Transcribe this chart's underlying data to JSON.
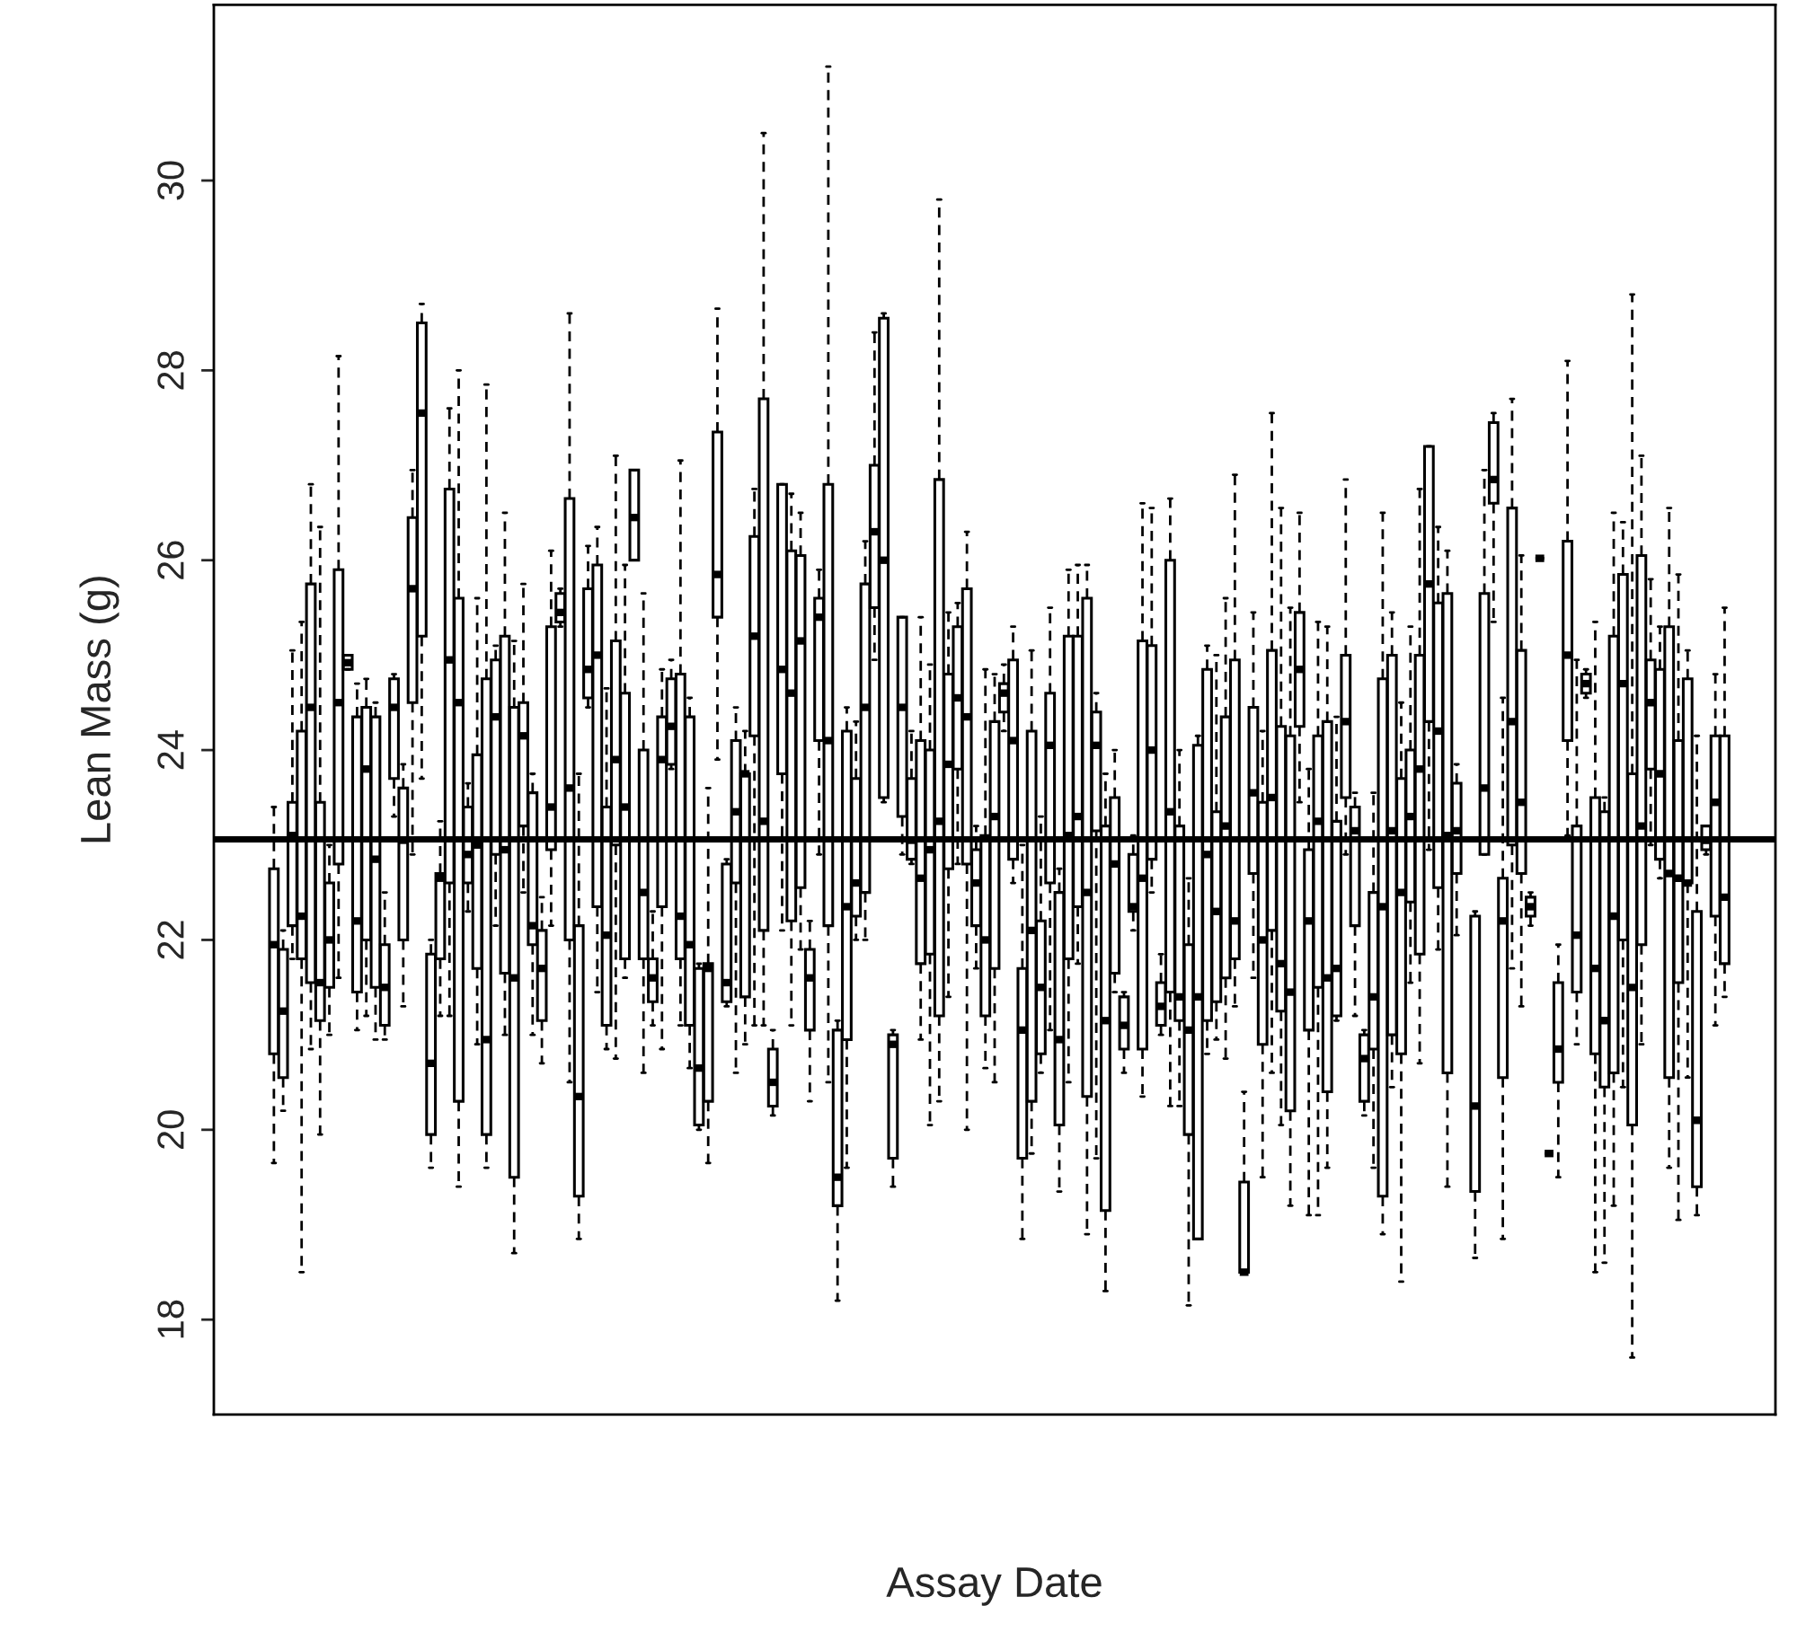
{
  "chart_data": {
    "type": "box",
    "xlabel": "Assay Date",
    "ylabel": "Lean Mass (g)",
    "ylim": [
      17.0,
      31.85
    ],
    "yticks": [
      18,
      20,
      22,
      24,
      26,
      28,
      30
    ],
    "grid": false,
    "tick_labels": "y",
    "ref_lines": [
      {
        "axis": "y",
        "value": 23.06
      }
    ],
    "categories": [
      null,
      null,
      null,
      null,
      null,
      null,
      null,
      null,
      null,
      null,
      null,
      null,
      null,
      null,
      null,
      null,
      null,
      null,
      null,
      null,
      null,
      null,
      null,
      null,
      null,
      null,
      null,
      null,
      null,
      null,
      null,
      null,
      null,
      null,
      null,
      null,
      null,
      null,
      null,
      null,
      null,
      null,
      null,
      null,
      null,
      null,
      null,
      null,
      null,
      null,
      null,
      null,
      null,
      null,
      null,
      null,
      null,
      null,
      null,
      null,
      null,
      null,
      null,
      null,
      null,
      null,
      null,
      null,
      null,
      null,
      null,
      null,
      null,
      null,
      null,
      null,
      null,
      null,
      null,
      null,
      null,
      null,
      null,
      null,
      null,
      null,
      null,
      null,
      null,
      null,
      null,
      null,
      null,
      null,
      null,
      null,
      null,
      null,
      null,
      null,
      null,
      null,
      null,
      null,
      null,
      null,
      null,
      null,
      null,
      null,
      null,
      null,
      null,
      null,
      null,
      null,
      null,
      null,
      null,
      null,
      null,
      null,
      null,
      null,
      null,
      null,
      null,
      null,
      null,
      null,
      null,
      null,
      null,
      null,
      null,
      null,
      null,
      null,
      null,
      null,
      null,
      null,
      null,
      null,
      null,
      null,
      null,
      null,
      null,
      null,
      null,
      null,
      null,
      null,
      null,
      null,
      null,
      null,
      null,
      null,
      null,
      null,
      null,
      null,
      null,
      null,
      null,
      null,
      null
    ],
    "boxes": [
      null,
      null,
      null,
      null,
      null,
      null,
      {
        "low": 19.65,
        "q1": 20.8,
        "median": 21.95,
        "q3": 22.75,
        "high": 23.4
      },
      {
        "low": 20.2,
        "q1": 20.55,
        "median": 21.25,
        "q3": 21.9,
        "high": 22.1
      },
      {
        "low": 21.8,
        "q1": 22.15,
        "median": 23.1,
        "q3": 23.45,
        "high": 25.05
      },
      {
        "low": 18.5,
        "q1": 21.8,
        "median": 22.25,
        "q3": 24.2,
        "high": 25.35
      },
      {
        "low": 20.85,
        "q1": 21.55,
        "median": 24.45,
        "q3": 25.75,
        "high": 26.8
      },
      {
        "low": 19.95,
        "q1": 21.15,
        "median": 21.55,
        "q3": 23.45,
        "high": 26.35
      },
      {
        "low": 21.0,
        "q1": 21.5,
        "median": 22.0,
        "q3": 22.6,
        "high": 23.0
      },
      {
        "low": 21.6,
        "q1": 22.8,
        "median": 24.5,
        "q3": 25.9,
        "high": 28.15
      },
      {
        "low": 24.85,
        "q1": 24.85,
        "median": 24.92,
        "q3": 25.0,
        "high": 25.0
      },
      {
        "low": 21.05,
        "q1": 21.45,
        "median": 22.2,
        "q3": 24.35,
        "high": 24.7
      },
      {
        "low": 21.2,
        "q1": 22.0,
        "median": 23.8,
        "q3": 24.45,
        "high": 24.75
      },
      {
        "low": 20.95,
        "q1": 21.5,
        "median": 22.85,
        "q3": 24.35,
        "high": 24.5
      },
      {
        "low": 20.95,
        "q1": 21.1,
        "median": 21.5,
        "q3": 21.95,
        "high": 22.5
      },
      {
        "low": 23.3,
        "q1": 23.7,
        "median": 24.45,
        "q3": 24.75,
        "high": 24.8
      },
      {
        "low": 21.3,
        "q1": 22.0,
        "median": 23.05,
        "q3": 23.6,
        "high": 23.85
      },
      {
        "low": 22.9,
        "q1": 24.5,
        "median": 25.7,
        "q3": 26.45,
        "high": 26.95
      },
      {
        "low": 23.7,
        "q1": 25.2,
        "median": 27.55,
        "q3": 28.5,
        "high": 28.7
      },
      {
        "low": 19.6,
        "q1": 19.95,
        "median": 20.7,
        "q3": 21.85,
        "high": 22.0
      },
      {
        "low": 21.2,
        "q1": 21.8,
        "median": 22.65,
        "q3": 22.7,
        "high": 23.25
      },
      {
        "low": 21.2,
        "q1": 22.6,
        "median": 24.95,
        "q3": 26.75,
        "high": 27.6
      },
      {
        "low": 19.4,
        "q1": 20.3,
        "median": 24.5,
        "q3": 25.6,
        "high": 28.0
      },
      {
        "low": 22.3,
        "q1": 22.6,
        "median": 22.9,
        "q3": 23.4,
        "high": 23.65
      },
      {
        "low": 20.9,
        "q1": 21.7,
        "median": 23.0,
        "q3": 23.95,
        "high": 25.6
      },
      {
        "low": 19.6,
        "q1": 19.95,
        "median": 20.95,
        "q3": 24.75,
        "high": 27.85
      },
      {
        "low": 22.15,
        "q1": 22.9,
        "median": 24.35,
        "q3": 24.95,
        "high": 25.1
      },
      {
        "low": 21.0,
        "q1": 21.65,
        "median": 22.95,
        "q3": 25.2,
        "high": 26.5
      },
      {
        "low": 18.7,
        "q1": 19.5,
        "median": 21.6,
        "q3": 24.45,
        "high": 25.15
      },
      {
        "low": 22.5,
        "q1": 23.2,
        "median": 24.15,
        "q3": 24.5,
        "high": 25.75
      },
      {
        "low": 21.0,
        "q1": 21.95,
        "median": 22.15,
        "q3": 23.55,
        "high": 23.75
      },
      {
        "low": 20.7,
        "q1": 21.15,
        "median": 21.7,
        "q3": 22.1,
        "high": 22.45
      },
      {
        "low": 22.15,
        "q1": 22.95,
        "median": 23.4,
        "q3": 25.3,
        "high": 26.1
      },
      {
        "low": 25.3,
        "q1": 25.35,
        "median": 25.45,
        "q3": 25.65,
        "high": 25.7
      },
      {
        "low": 20.5,
        "q1": 22.0,
        "median": 23.6,
        "q3": 26.65,
        "high": 28.6
      },
      {
        "low": 18.85,
        "q1": 19.3,
        "median": 20.35,
        "q3": 22.15,
        "high": 23.75
      },
      {
        "low": 24.45,
        "q1": 24.55,
        "median": 24.85,
        "q3": 25.7,
        "high": 26.15
      },
      {
        "low": 21.45,
        "q1": 22.35,
        "median": 25.0,
        "q3": 25.95,
        "high": 26.35
      },
      {
        "low": 20.85,
        "q1": 21.1,
        "median": 22.05,
        "q3": 23.4,
        "high": 24.65
      },
      {
        "low": 20.75,
        "q1": 23.0,
        "median": 23.9,
        "q3": 25.15,
        "high": 27.1
      },
      {
        "low": 21.6,
        "q1": 21.8,
        "median": 23.4,
        "q3": 24.6,
        "high": 25.95
      },
      {
        "low": 26.0,
        "q1": 26.0,
        "median": 26.45,
        "q3": 26.95,
        "high": 26.95
      },
      {
        "low": 20.6,
        "q1": 21.8,
        "median": 22.5,
        "q3": 24.0,
        "high": 25.65
      },
      {
        "low": 21.1,
        "q1": 21.35,
        "median": 21.6,
        "q3": 21.8,
        "high": 22.3
      },
      {
        "low": 20.85,
        "q1": 22.35,
        "median": 23.9,
        "q3": 24.35,
        "high": 24.85
      },
      {
        "low": 23.8,
        "q1": 23.85,
        "median": 24.25,
        "q3": 24.75,
        "high": 24.95
      },
      {
        "low": 21.1,
        "q1": 21.8,
        "median": 22.25,
        "q3": 24.8,
        "high": 27.05
      },
      {
        "low": 20.65,
        "q1": 21.1,
        "median": 21.95,
        "q3": 24.35,
        "high": 24.55
      },
      {
        "low": 20.0,
        "q1": 20.05,
        "median": 20.65,
        "q3": 21.7,
        "high": 21.75
      },
      {
        "low": 19.65,
        "q1": 20.3,
        "median": 21.7,
        "q3": 21.75,
        "high": 23.6
      },
      {
        "low": 23.9,
        "q1": 25.4,
        "median": 25.85,
        "q3": 27.35,
        "high": 28.65
      },
      {
        "low": 21.3,
        "q1": 21.35,
        "median": 21.55,
        "q3": 22.8,
        "high": 22.85
      },
      {
        "low": 20.6,
        "q1": 22.6,
        "median": 23.35,
        "q3": 24.1,
        "high": 24.45
      },
      {
        "low": 20.9,
        "q1": 21.4,
        "median": 23.75,
        "q3": 23.75,
        "high": 24.2
      },
      {
        "low": 21.1,
        "q1": 24.15,
        "median": 25.2,
        "q3": 26.25,
        "high": 26.75
      },
      {
        "low": 21.1,
        "q1": 22.1,
        "median": 23.25,
        "q3": 27.7,
        "high": 30.5
      },
      {
        "low": 20.15,
        "q1": 20.25,
        "median": 20.5,
        "q3": 20.85,
        "high": 21.05
      },
      {
        "low": 22.1,
        "q1": 23.75,
        "median": 24.85,
        "q3": 26.8,
        "high": 26.8
      },
      {
        "low": 21.1,
        "q1": 22.2,
        "median": 24.6,
        "q3": 26.1,
        "high": 26.7
      },
      {
        "low": 21.9,
        "q1": 22.55,
        "median": 25.15,
        "q3": 26.05,
        "high": 26.5
      },
      {
        "low": 20.3,
        "q1": 21.05,
        "median": 21.6,
        "q3": 21.9,
        "high": 22.2
      },
      {
        "low": 22.9,
        "q1": 24.1,
        "median": 25.4,
        "q3": 25.6,
        "high": 25.9
      },
      {
        "low": 20.5,
        "q1": 22.15,
        "median": 24.1,
        "q3": 26.8,
        "high": 31.2
      },
      {
        "low": 18.2,
        "q1": 19.2,
        "median": 19.5,
        "q3": 21.05,
        "high": 21.15
      },
      {
        "low": 19.6,
        "q1": 20.95,
        "median": 22.35,
        "q3": 24.2,
        "high": 24.45
      },
      {
        "low": 22.0,
        "q1": 22.25,
        "median": 22.6,
        "q3": 23.7,
        "high": 24.3
      },
      {
        "low": 22.0,
        "q1": 22.5,
        "median": 24.45,
        "q3": 25.75,
        "high": 26.2
      },
      {
        "low": 24.95,
        "q1": 25.5,
        "median": 26.3,
        "q3": 27.0,
        "high": 28.4
      },
      {
        "low": 23.45,
        "q1": 23.5,
        "median": 26.0,
        "q3": 28.55,
        "high": 28.6
      },
      {
        "low": 19.4,
        "q1": 19.7,
        "median": 20.9,
        "q3": 21.0,
        "high": 21.05
      },
      {
        "low": 22.9,
        "q1": 23.3,
        "median": 24.45,
        "q3": 25.4,
        "high": 25.4
      },
      {
        "low": 22.8,
        "q1": 22.85,
        "median": 23.05,
        "q3": 23.7,
        "high": 24.2
      },
      {
        "low": 20.95,
        "q1": 21.75,
        "median": 22.65,
        "q3": 24.1,
        "high": 25.4
      },
      {
        "low": 20.05,
        "q1": 21.85,
        "median": 22.95,
        "q3": 24.0,
        "high": 24.9
      },
      {
        "low": 20.3,
        "q1": 21.2,
        "median": 23.25,
        "q3": 26.85,
        "high": 29.8
      },
      {
        "low": 21.4,
        "q1": 22.75,
        "median": 23.85,
        "q3": 24.8,
        "high": 25.45
      },
      {
        "low": 22.8,
        "q1": 23.8,
        "median": 24.55,
        "q3": 25.3,
        "high": 25.55
      },
      {
        "low": 20.0,
        "q1": 22.8,
        "median": 24.35,
        "q3": 25.7,
        "high": 26.3
      },
      {
        "low": 21.7,
        "q1": 22.15,
        "median": 22.6,
        "q3": 22.95,
        "high": 23.2
      },
      {
        "low": 20.65,
        "q1": 21.2,
        "median": 22.0,
        "q3": 23.1,
        "high": 24.85
      },
      {
        "low": 20.5,
        "q1": 21.7,
        "median": 23.3,
        "q3": 24.3,
        "high": 24.8
      },
      {
        "low": 24.2,
        "q1": 24.4,
        "median": 24.6,
        "q3": 24.7,
        "high": 24.9
      },
      {
        "low": 22.6,
        "q1": 22.85,
        "median": 24.1,
        "q3": 24.95,
        "high": 25.3
      },
      {
        "low": 18.85,
        "q1": 19.7,
        "median": 21.05,
        "q3": 21.7,
        "high": 23.0
      },
      {
        "low": 19.75,
        "q1": 20.3,
        "median": 22.1,
        "q3": 24.2,
        "high": 25.05
      },
      {
        "low": 20.6,
        "q1": 20.8,
        "median": 21.5,
        "q3": 22.2,
        "high": 23.3
      },
      {
        "low": 21.05,
        "q1": 22.6,
        "median": 24.05,
        "q3": 24.6,
        "high": 25.5
      },
      {
        "low": 19.35,
        "q1": 20.05,
        "median": 20.95,
        "q3": 22.5,
        "high": 22.75
      },
      {
        "low": 20.5,
        "q1": 21.8,
        "median": 23.1,
        "q3": 25.2,
        "high": 25.9
      },
      {
        "low": 21.75,
        "q1": 22.35,
        "median": 23.3,
        "q3": 25.2,
        "high": 25.95
      },
      {
        "low": 18.9,
        "q1": 20.35,
        "median": 22.5,
        "q3": 25.6,
        "high": 25.95
      },
      {
        "low": 19.7,
        "q1": 23.15,
        "median": 24.05,
        "q3": 24.4,
        "high": 24.6
      },
      {
        "low": 18.3,
        "q1": 19.15,
        "median": 21.15,
        "q3": 23.2,
        "high": 23.75
      },
      {
        "low": 21.45,
        "q1": 21.65,
        "median": 22.8,
        "q3": 23.5,
        "high": 24.0
      },
      {
        "low": 20.6,
        "q1": 20.85,
        "median": 21.1,
        "q3": 21.4,
        "high": 21.45
      },
      {
        "low": 22.1,
        "q1": 22.3,
        "median": 22.35,
        "q3": 22.9,
        "high": 23.1
      },
      {
        "low": 20.35,
        "q1": 20.85,
        "median": 22.65,
        "q3": 25.15,
        "high": 26.6
      },
      {
        "low": 22.5,
        "q1": 22.85,
        "median": 24.0,
        "q3": 25.1,
        "high": 26.55
      },
      {
        "low": 21.0,
        "q1": 21.1,
        "median": 21.3,
        "q3": 21.55,
        "high": 21.85
      },
      {
        "low": 20.25,
        "q1": 21.45,
        "median": 23.35,
        "q3": 26.0,
        "high": 26.65
      },
      {
        "low": 20.25,
        "q1": 21.15,
        "median": 21.4,
        "q3": 23.2,
        "high": 24.0
      },
      {
        "low": 18.15,
        "q1": 19.95,
        "median": 21.05,
        "q3": 21.95,
        "high": 22.65
      },
      {
        "low": 18.85,
        "q1": 18.85,
        "median": 21.4,
        "q3": 24.05,
        "high": 24.15
      },
      {
        "low": 20.8,
        "q1": 21.15,
        "median": 22.9,
        "q3": 24.85,
        "high": 25.1
      },
      {
        "low": 20.95,
        "q1": 21.35,
        "median": 22.3,
        "q3": 23.35,
        "high": 25.0
      },
      {
        "low": 20.75,
        "q1": 21.6,
        "median": 23.2,
        "q3": 24.35,
        "high": 25.6
      },
      {
        "low": 21.3,
        "q1": 21.8,
        "median": 22.2,
        "q3": 24.95,
        "high": 26.9
      },
      {
        "low": 18.5,
        "q1": 18.5,
        "median": 18.5,
        "q3": 19.45,
        "high": 20.4
      },
      {
        "low": 21.6,
        "q1": 22.7,
        "median": 23.55,
        "q3": 24.45,
        "high": 25.45
      },
      {
        "low": 19.5,
        "q1": 20.9,
        "median": 22.0,
        "q3": 23.45,
        "high": 24.2
      },
      {
        "low": 20.6,
        "q1": 22.1,
        "median": 23.5,
        "q3": 25.05,
        "high": 27.55
      },
      {
        "low": 20.05,
        "q1": 21.25,
        "median": 21.75,
        "q3": 24.25,
        "high": 26.55
      },
      {
        "low": 19.2,
        "q1": 20.2,
        "median": 21.45,
        "q3": 24.15,
        "high": 25.5
      },
      {
        "low": 23.45,
        "q1": 24.25,
        "median": 24.85,
        "q3": 25.45,
        "high": 26.5
      },
      {
        "low": 19.1,
        "q1": 21.05,
        "median": 22.2,
        "q3": 22.95,
        "high": 23.8
      },
      {
        "low": 19.1,
        "q1": 21.5,
        "median": 23.25,
        "q3": 24.15,
        "high": 25.35
      },
      {
        "low": 19.6,
        "q1": 20.4,
        "median": 21.6,
        "q3": 24.3,
        "high": 25.3
      },
      {
        "low": 21.15,
        "q1": 21.2,
        "median": 21.7,
        "q3": 23.25,
        "high": 24.35
      },
      {
        "low": 22.9,
        "q1": 23.5,
        "median": 24.3,
        "q3": 25.0,
        "high": 26.85
      },
      {
        "low": 21.2,
        "q1": 22.15,
        "median": 23.15,
        "q3": 23.4,
        "high": 23.55
      },
      {
        "low": 20.15,
        "q1": 20.3,
        "median": 20.75,
        "q3": 21.0,
        "high": 21.05
      },
      {
        "low": 19.6,
        "q1": 20.85,
        "median": 21.4,
        "q3": 22.5,
        "high": 23.55
      },
      {
        "low": 18.9,
        "q1": 19.3,
        "median": 22.35,
        "q3": 24.75,
        "high": 26.5
      },
      {
        "low": 20.45,
        "q1": 21.0,
        "median": 23.15,
        "q3": 25.0,
        "high": 25.45
      },
      {
        "low": 18.4,
        "q1": 20.8,
        "median": 22.5,
        "q3": 23.7,
        "high": 24.5
      },
      {
        "low": 21.55,
        "q1": 22.4,
        "median": 23.3,
        "q3": 24.0,
        "high": 25.3
      },
      {
        "low": 20.7,
        "q1": 21.85,
        "median": 23.8,
        "q3": 25.0,
        "high": 26.75
      },
      {
        "low": 22.95,
        "q1": 24.3,
        "median": 25.75,
        "q3": 27.2,
        "high": 27.2
      },
      {
        "low": 21.9,
        "q1": 22.55,
        "median": 24.2,
        "q3": 25.55,
        "high": 26.35
      },
      {
        "low": 19.4,
        "q1": 20.6,
        "median": 23.1,
        "q3": 25.65,
        "high": 26.1
      },
      {
        "low": 22.05,
        "q1": 22.7,
        "median": 23.15,
        "q3": 23.65,
        "high": 23.85
      },
      null,
      {
        "low": 18.65,
        "q1": 19.35,
        "median": 20.25,
        "q3": 22.25,
        "high": 22.3
      },
      {
        "low": 22.9,
        "q1": 22.9,
        "median": 23.6,
        "q3": 25.65,
        "high": 26.95
      },
      {
        "low": 25.35,
        "q1": 26.6,
        "median": 26.85,
        "q3": 27.45,
        "high": 27.55
      },
      {
        "low": 18.85,
        "q1": 20.55,
        "median": 22.2,
        "q3": 22.65,
        "high": 24.55
      },
      {
        "low": 21.7,
        "q1": 23.0,
        "median": 24.3,
        "q3": 26.55,
        "high": 27.7
      },
      {
        "low": 21.3,
        "q1": 22.7,
        "median": 23.45,
        "q3": 25.05,
        "high": 26.05
      },
      {
        "low": 22.15,
        "q1": 22.25,
        "median": 22.35,
        "q3": 22.45,
        "high": 22.5
      },
      {
        "low": 26.02,
        "q1": 26.02,
        "median": 26.02,
        "q3": 26.02,
        "high": 26.02
      },
      {
        "low": 19.75,
        "q1": 19.75,
        "median": 19.75,
        "q3": 19.75,
        "high": 19.75
      },
      {
        "low": 19.5,
        "q1": 20.5,
        "median": 20.85,
        "q3": 21.55,
        "high": 21.95
      },
      {
        "low": 23.1,
        "q1": 24.1,
        "median": 25.0,
        "q3": 26.2,
        "high": 28.1
      },
      {
        "low": 20.9,
        "q1": 21.45,
        "median": 22.05,
        "q3": 23.2,
        "high": 24.95
      },
      {
        "low": 24.55,
        "q1": 24.6,
        "median": 24.7,
        "q3": 24.8,
        "high": 24.85
      },
      {
        "low": 18.5,
        "q1": 20.8,
        "median": 21.7,
        "q3": 23.5,
        "high": 25.35
      },
      {
        "low": 18.6,
        "q1": 20.45,
        "median": 21.15,
        "q3": 23.35,
        "high": 23.5
      },
      {
        "low": 19.2,
        "q1": 20.6,
        "median": 22.25,
        "q3": 25.2,
        "high": 26.5
      },
      {
        "low": 20.45,
        "q1": 22.0,
        "median": 24.7,
        "q3": 25.85,
        "high": 26.4
      },
      {
        "low": 17.6,
        "q1": 20.05,
        "median": 21.5,
        "q3": 23.75,
        "high": 28.8
      },
      {
        "low": 20.9,
        "q1": 21.95,
        "median": 23.2,
        "q3": 26.05,
        "high": 27.1
      },
      {
        "low": 23.0,
        "q1": 23.8,
        "median": 24.5,
        "q3": 24.95,
        "high": 25.8
      },
      {
        "low": 22.65,
        "q1": 22.85,
        "median": 23.75,
        "q3": 24.85,
        "high": 25.3
      },
      {
        "low": 19.6,
        "q1": 20.55,
        "median": 22.7,
        "q3": 25.3,
        "high": 26.55
      },
      {
        "low": 19.05,
        "q1": 21.55,
        "median": 22.65,
        "q3": 24.1,
        "high": 25.85
      },
      {
        "low": 20.55,
        "q1": 22.6,
        "median": 22.6,
        "q3": 24.75,
        "high": 25.05
      },
      {
        "low": 19.1,
        "q1": 19.4,
        "median": 20.1,
        "q3": 22.3,
        "high": 24.15
      },
      {
        "low": 22.9,
        "q1": 22.95,
        "median": 23.05,
        "q3": 23.2,
        "high": 23.2
      },
      {
        "low": 21.1,
        "q1": 22.25,
        "median": 23.45,
        "q3": 24.15,
        "high": 24.8
      },
      {
        "low": 21.4,
        "q1": 21.75,
        "median": 22.45,
        "q3": 24.15,
        "high": 25.5
      },
      null,
      null,
      null,
      null,
      null
    ]
  }
}
